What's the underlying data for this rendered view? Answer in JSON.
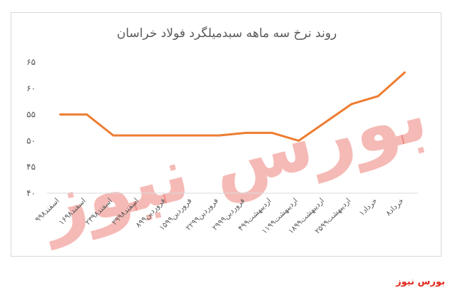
{
  "chart_data": {
    "type": "line",
    "title": "روند نرخ سه ماهه سبدمیلگرد فولاد خراسان",
    "xlabel": "",
    "ylabel": "",
    "ylim": [
      40,
      65
    ],
    "y_ticks": [
      "۴۰",
      "۴۵",
      "۵۰",
      "۵۵",
      "۶۰",
      "۶۵"
    ],
    "grid": false,
    "categories": [
      "۹اسفند۹۸",
      "۱۶اسفند۹۸",
      "۲۳اسفند۹۸",
      "۲۹اسفند۹۸",
      "۸فروردین۹۹",
      "۱۵فروردین۹۹",
      "۲۲فروردین۹۹",
      "۲۹فروردین۹۹",
      "۴اردیبهشت۹۹",
      "۱۱اردیبهشت۹۹",
      "۱۸اردیبهشت۹۹",
      "۲۵اردیبهشت۹۹",
      "۱خرداد",
      "۸خرداد"
    ],
    "series": [
      {
        "values": [
          55,
          55,
          51,
          51,
          51,
          51,
          51,
          51.5,
          51.5,
          50,
          53.5,
          57,
          58.5,
          63
        ],
        "color": "#ed7d31"
      }
    ]
  },
  "watermark": "بورس نیوز",
  "footer": {
    "brand": "بورس نیوز",
    "color": "#e0271c"
  }
}
